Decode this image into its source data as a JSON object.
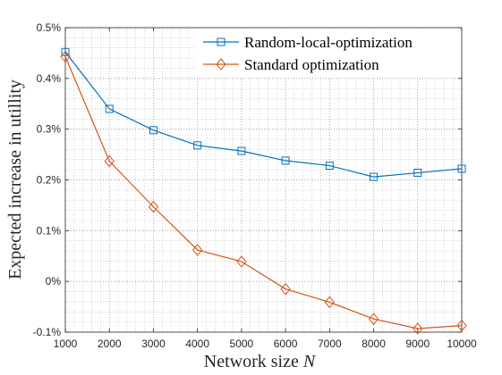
{
  "chart_data": {
    "type": "line",
    "title": "",
    "xlabel": "Network size",
    "xlabel_var": "N",
    "ylabel": "Expected increase in utillity",
    "x": [
      1000,
      2000,
      3000,
      4000,
      5000,
      6000,
      7000,
      8000,
      9000,
      10000
    ],
    "xlim": [
      1000,
      10000
    ],
    "ylim": [
      -0.1,
      0.5
    ],
    "x_ticks": [
      "1000",
      "2000",
      "3000",
      "4000",
      "5000",
      "6000",
      "7000",
      "8000",
      "9000",
      "10000"
    ],
    "y_ticks": [
      "-0.1%",
      "0%",
      "0.1%",
      "0.2%",
      "0.3%",
      "0.4%",
      "0.5%"
    ],
    "y_tick_values": [
      -0.1,
      0,
      0.1,
      0.2,
      0.3,
      0.4,
      0.5
    ],
    "grid": true,
    "legend_position": "top-right",
    "series": [
      {
        "name": "Random-local-optimization",
        "color": "#0072bd",
        "marker": "square",
        "values": [
          0.452,
          0.34,
          0.298,
          0.268,
          0.257,
          0.238,
          0.228,
          0.206,
          0.214,
          0.222
        ]
      },
      {
        "name": "Standard optimization",
        "color": "#d95319",
        "marker": "diamond",
        "values": [
          0.443,
          0.237,
          0.147,
          0.062,
          0.039,
          -0.015,
          -0.041,
          -0.074,
          -0.093,
          -0.087
        ]
      }
    ]
  }
}
